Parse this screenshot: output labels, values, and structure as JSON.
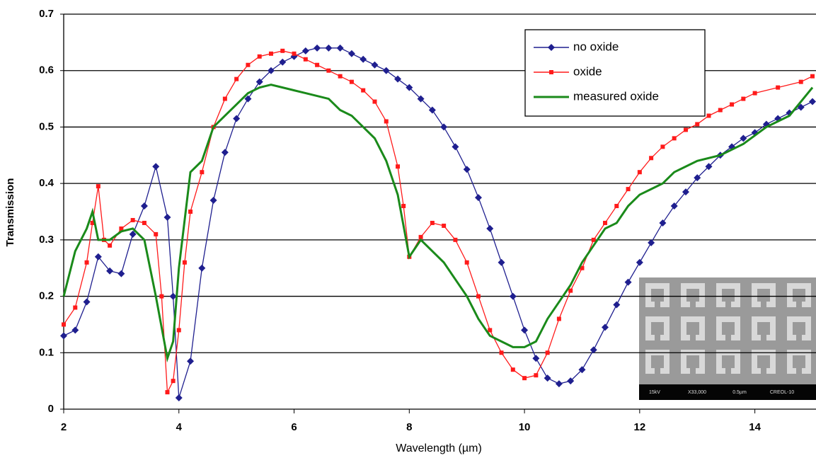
{
  "chart_data": {
    "type": "line",
    "xlabel": "Wavelength (µm)",
    "ylabel": "Transmission",
    "xlim": [
      2,
      15
    ],
    "ylim": [
      0,
      0.7
    ],
    "xticks": [
      2,
      4,
      6,
      8,
      10,
      12,
      14
    ],
    "yticks": [
      0,
      0.1,
      0.2,
      0.3,
      0.4,
      0.5,
      0.6,
      0.7
    ],
    "grid": true,
    "legend": "top-right",
    "annotations": [
      "15kV",
      "X33,000",
      "0.5µm",
      "CREOL-10"
    ],
    "series": [
      {
        "name": "no oxide",
        "color": "#1f1f8f",
        "marker": "diamond",
        "x": [
          2,
          2.2,
          2.4,
          2.6,
          2.8,
          3.0,
          3.2,
          3.4,
          3.6,
          3.8,
          3.9,
          4.0,
          4.2,
          4.4,
          4.6,
          4.8,
          5.0,
          5.2,
          5.4,
          5.6,
          5.8,
          6.0,
          6.2,
          6.4,
          6.6,
          6.8,
          7.0,
          7.2,
          7.4,
          7.6,
          7.8,
          8.0,
          8.2,
          8.4,
          8.6,
          8.8,
          9.0,
          9.2,
          9.4,
          9.6,
          9.8,
          10.0,
          10.2,
          10.4,
          10.6,
          10.8,
          11.0,
          11.2,
          11.4,
          11.6,
          11.8,
          12.0,
          12.2,
          12.4,
          12.6,
          12.8,
          13.0,
          13.2,
          13.4,
          13.6,
          13.8,
          14.0,
          14.2,
          14.4,
          14.6,
          14.8,
          15.0
        ],
        "values": [
          0.13,
          0.14,
          0.19,
          0.27,
          0.245,
          0.24,
          0.31,
          0.36,
          0.43,
          0.34,
          0.2,
          0.02,
          0.085,
          0.25,
          0.37,
          0.455,
          0.515,
          0.55,
          0.58,
          0.6,
          0.615,
          0.625,
          0.635,
          0.64,
          0.64,
          0.64,
          0.63,
          0.62,
          0.61,
          0.6,
          0.585,
          0.57,
          0.55,
          0.53,
          0.5,
          0.465,
          0.425,
          0.375,
          0.32,
          0.26,
          0.2,
          0.14,
          0.09,
          0.055,
          0.045,
          0.05,
          0.07,
          0.105,
          0.145,
          0.185,
          0.225,
          0.26,
          0.295,
          0.33,
          0.36,
          0.385,
          0.41,
          0.43,
          0.45,
          0.465,
          0.48,
          0.49,
          0.505,
          0.515,
          0.525,
          0.535,
          0.545
        ]
      },
      {
        "name": "oxide",
        "color": "#ff1a1a",
        "marker": "square",
        "x": [
          2,
          2.2,
          2.4,
          2.5,
          2.6,
          2.7,
          2.8,
          3.0,
          3.2,
          3.4,
          3.6,
          3.7,
          3.8,
          3.9,
          4.0,
          4.1,
          4.2,
          4.4,
          4.6,
          4.8,
          5.0,
          5.2,
          5.4,
          5.6,
          5.8,
          6.0,
          6.2,
          6.4,
          6.6,
          6.8,
          7.0,
          7.2,
          7.4,
          7.6,
          7.8,
          7.9,
          8.0,
          8.2,
          8.4,
          8.6,
          8.8,
          9.0,
          9.2,
          9.4,
          9.6,
          9.8,
          10.0,
          10.2,
          10.4,
          10.6,
          10.8,
          11.0,
          11.2,
          11.4,
          11.6,
          11.8,
          12.0,
          12.2,
          12.4,
          12.6,
          12.8,
          13.0,
          13.2,
          13.4,
          13.6,
          13.8,
          14.0,
          14.4,
          14.8,
          15.0
        ],
        "values": [
          0.15,
          0.18,
          0.26,
          0.33,
          0.395,
          0.3,
          0.29,
          0.32,
          0.335,
          0.33,
          0.31,
          0.2,
          0.03,
          0.05,
          0.14,
          0.26,
          0.35,
          0.42,
          0.5,
          0.55,
          0.585,
          0.61,
          0.625,
          0.63,
          0.635,
          0.63,
          0.62,
          0.61,
          0.6,
          0.59,
          0.58,
          0.565,
          0.545,
          0.51,
          0.43,
          0.36,
          0.27,
          0.305,
          0.33,
          0.325,
          0.3,
          0.26,
          0.2,
          0.14,
          0.1,
          0.07,
          0.055,
          0.06,
          0.1,
          0.16,
          0.21,
          0.25,
          0.3,
          0.33,
          0.36,
          0.39,
          0.42,
          0.445,
          0.465,
          0.48,
          0.495,
          0.505,
          0.52,
          0.53,
          0.54,
          0.55,
          0.56,
          0.57,
          0.58,
          0.59
        ]
      },
      {
        "name": "measured oxide",
        "color": "#1a8a1a",
        "marker": "none",
        "x": [
          2,
          2.2,
          2.4,
          2.5,
          2.6,
          2.8,
          3.0,
          3.2,
          3.4,
          3.6,
          3.8,
          3.9,
          4.0,
          4.2,
          4.4,
          4.6,
          4.8,
          5.0,
          5.2,
          5.4,
          5.6,
          5.8,
          6.0,
          6.2,
          6.4,
          6.6,
          6.8,
          7.0,
          7.2,
          7.4,
          7.6,
          7.8,
          8.0,
          8.2,
          8.4,
          8.6,
          8.8,
          9.0,
          9.2,
          9.4,
          9.6,
          9.8,
          10.0,
          10.2,
          10.4,
          10.6,
          10.8,
          11.0,
          11.2,
          11.4,
          11.6,
          11.8,
          12.0,
          12.2,
          12.4,
          12.6,
          12.8,
          13.0,
          13.4,
          13.8,
          14.2,
          14.6,
          15.0
        ],
        "values": [
          0.2,
          0.28,
          0.32,
          0.35,
          0.3,
          0.3,
          0.315,
          0.32,
          0.3,
          0.2,
          0.09,
          0.12,
          0.25,
          0.42,
          0.44,
          0.5,
          0.52,
          0.54,
          0.56,
          0.57,
          0.575,
          0.57,
          0.565,
          0.56,
          0.555,
          0.55,
          0.53,
          0.52,
          0.5,
          0.48,
          0.44,
          0.38,
          0.27,
          0.3,
          0.28,
          0.26,
          0.23,
          0.2,
          0.16,
          0.13,
          0.12,
          0.11,
          0.11,
          0.12,
          0.16,
          0.19,
          0.22,
          0.26,
          0.29,
          0.32,
          0.33,
          0.36,
          0.38,
          0.39,
          0.4,
          0.42,
          0.43,
          0.44,
          0.45,
          0.47,
          0.5,
          0.52,
          0.57
        ]
      }
    ]
  }
}
